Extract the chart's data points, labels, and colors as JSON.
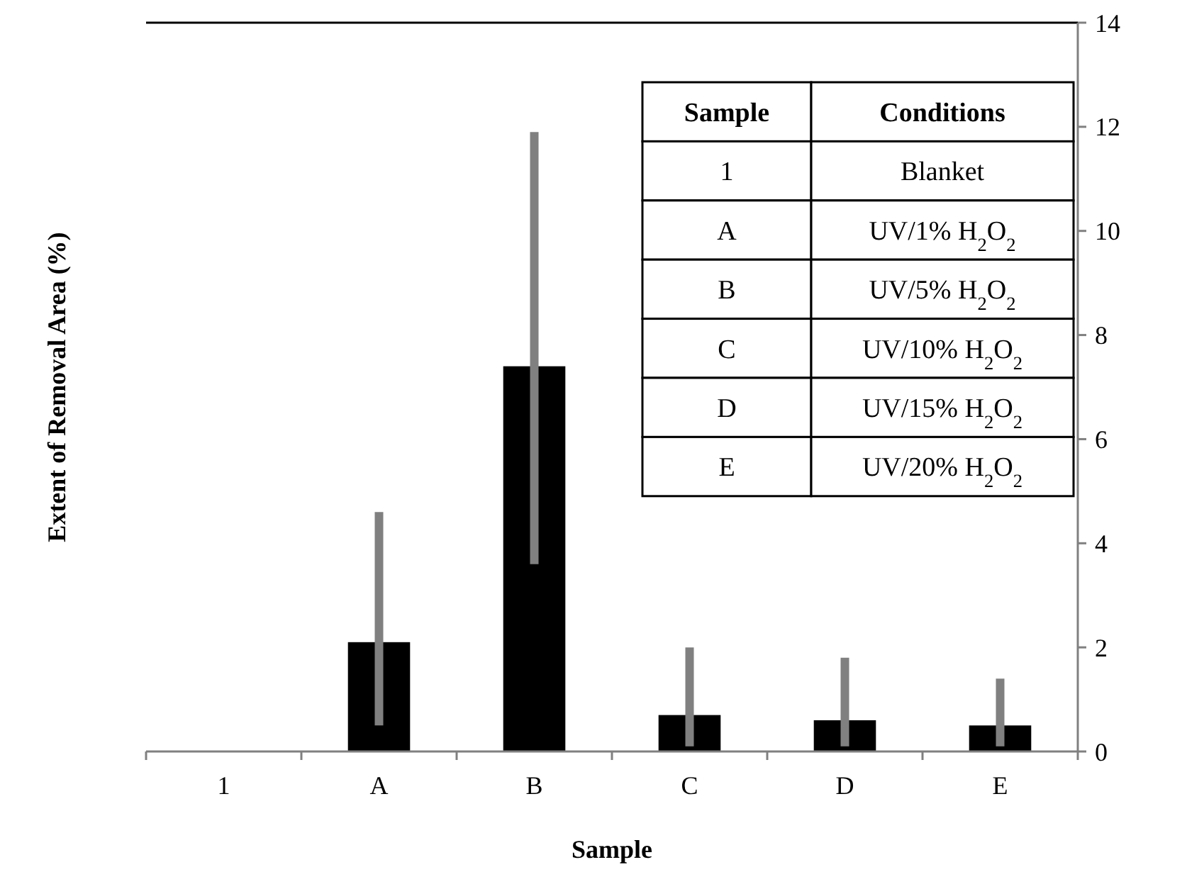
{
  "chart_data": {
    "type": "bar",
    "xlabel": "Sample",
    "ylabel": "Extent of Removal Area (%)",
    "categories": [
      "1",
      "A",
      "B",
      "C",
      "D",
      "E"
    ],
    "values": [
      0,
      2.1,
      7.4,
      0.7,
      0.6,
      0.5
    ],
    "errors": [
      null,
      [
        0.5,
        4.6
      ],
      [
        3.6,
        11.9
      ],
      [
        0.1,
        2.0
      ],
      [
        0.1,
        1.8
      ],
      [
        0.1,
        1.4
      ]
    ],
    "color": "#000000",
    "ylim": [
      0,
      14
    ],
    "yticks": [
      0,
      2,
      4,
      6,
      8,
      10,
      12,
      14
    ],
    "grid": false,
    "annotations": [
      "Sample",
      "Conditions",
      "1",
      "Blanket",
      "A",
      "UV/1% H$_{2}$O$_{2}$",
      "B",
      "UV/5% H$_{2}$O$_{2}$",
      "C",
      "UV/10% H$_{2}$O$_{2}$",
      "D",
      "UV/15% H$_{2}$O$_{2}$",
      "E",
      "UV/20% H$_{2}$O$_{2}$"
    ]
  }
}
